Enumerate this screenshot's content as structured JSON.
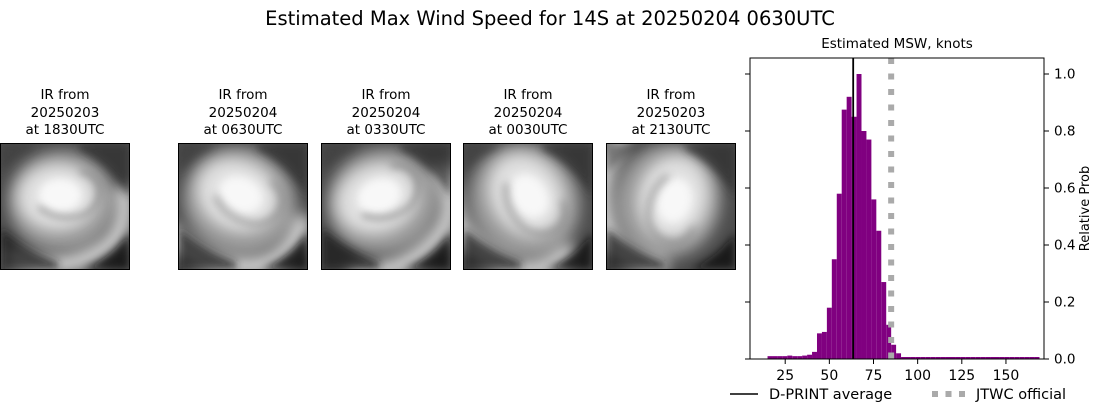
{
  "title": "Estimated Max Wind Speed for 14S at 20250204 0630UTC",
  "panels": [
    {
      "line1": "IR from",
      "line2": "20250204",
      "line3": "at 0630UTC"
    },
    {
      "line1": "IR from",
      "line2": "20250204",
      "line3": "at 0330UTC"
    },
    {
      "line1": "IR from",
      "line2": "20250204",
      "line3": "at 0030UTC"
    },
    {
      "line1": "IR from",
      "line2": "20250203",
      "line3": "at 2130UTC"
    },
    {
      "line1": "IR from",
      "line2": "20250203",
      "line3": "at 1830UTC"
    }
  ],
  "chart_data": {
    "type": "bar",
    "title": "Estimated MSW, knots",
    "xlabel": "",
    "ylabel": "Relative Prob",
    "xlim": [
      5.1,
      171.5
    ],
    "ylim": [
      0,
      1.056
    ],
    "xticks": [
      25,
      50,
      75,
      100,
      125,
      150
    ],
    "yticks": [
      "0.0",
      "0.2",
      "0.4",
      "0.6",
      "0.8",
      "1.0"
    ],
    "grid": false,
    "legend_position": "below",
    "bar_color": "#800080",
    "bin_width": 2.8,
    "bins": [
      [
        16.4,
        0.01
      ],
      [
        19.2,
        0.01
      ],
      [
        22.0,
        0.01
      ],
      [
        24.8,
        0.01
      ],
      [
        27.6,
        0.012
      ],
      [
        30.4,
        0.01
      ],
      [
        33.2,
        0.01
      ],
      [
        36.0,
        0.012
      ],
      [
        38.8,
        0.015
      ],
      [
        41.6,
        0.025
      ],
      [
        44.4,
        0.09
      ],
      [
        47.2,
        0.095
      ],
      [
        50.0,
        0.18
      ],
      [
        52.8,
        0.35
      ],
      [
        55.6,
        0.58
      ],
      [
        58.4,
        0.875
      ],
      [
        61.2,
        0.92
      ],
      [
        64.0,
        0.85
      ],
      [
        66.8,
        1.0
      ],
      [
        69.6,
        0.8
      ],
      [
        72.4,
        0.77
      ],
      [
        75.2,
        0.56
      ],
      [
        78.0,
        0.45
      ],
      [
        80.8,
        0.27
      ],
      [
        83.6,
        0.12
      ],
      [
        86.4,
        0.05
      ],
      [
        89.2,
        0.02
      ],
      [
        92.0,
        0.007
      ],
      [
        94.8,
        0.007
      ],
      [
        97.6,
        0.007
      ],
      [
        100.4,
        0.007
      ],
      [
        103.2,
        0.007
      ],
      [
        106.0,
        0.007
      ],
      [
        108.8,
        0.007
      ],
      [
        111.6,
        0.007
      ],
      [
        114.4,
        0.007
      ],
      [
        117.2,
        0.007
      ],
      [
        120.0,
        0.007
      ],
      [
        122.8,
        0.007
      ],
      [
        125.6,
        0.007
      ],
      [
        128.4,
        0.007
      ],
      [
        131.2,
        0.007
      ],
      [
        134.0,
        0.007
      ],
      [
        136.8,
        0.007
      ],
      [
        139.6,
        0.007
      ],
      [
        142.4,
        0.007
      ],
      [
        145.2,
        0.007
      ],
      [
        148.0,
        0.007
      ],
      [
        150.8,
        0.007
      ],
      [
        153.6,
        0.007
      ],
      [
        156.4,
        0.007
      ],
      [
        159.2,
        0.007
      ],
      [
        162.0,
        0.007
      ],
      [
        164.8,
        0.007
      ],
      [
        167.6,
        0.007
      ]
    ],
    "vlines": [
      {
        "label": "D-PRINT average",
        "x": 63.5,
        "style": "solid",
        "color": "#000000"
      },
      {
        "label": "JTWC official",
        "x": 85,
        "style": "dotted",
        "color": "#aaaaaa"
      }
    ]
  }
}
